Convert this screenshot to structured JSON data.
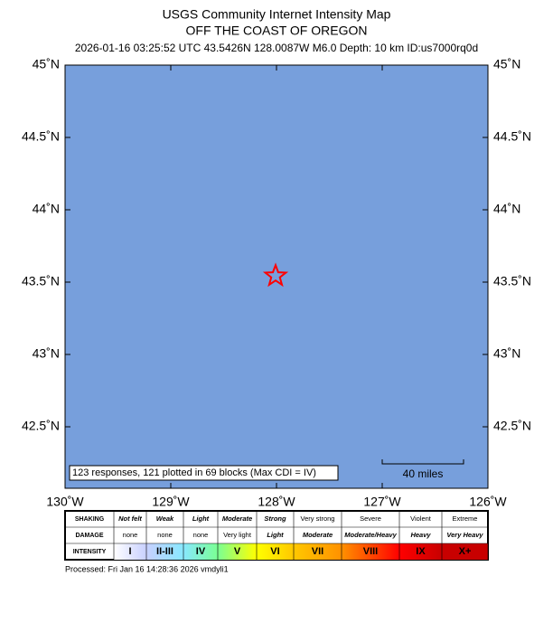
{
  "header": {
    "title": "USGS Community Internet Intensity Map",
    "subtitle": "OFF THE COAST OF OREGON",
    "info": "2026-01-16 03:25:52 UTC 43.5426N 128.0087W M6.0 Depth: 10 km ID:us7000rq0d"
  },
  "map": {
    "xlim": [
      -130,
      -126
    ],
    "ylim": [
      42.075,
      45
    ],
    "xticks": [
      {
        "value": -130,
        "label": "130˚W"
      },
      {
        "value": -129,
        "label": "129˚W"
      },
      {
        "value": -128,
        "label": "128˚W"
      },
      {
        "value": -127,
        "label": "127˚W"
      },
      {
        "value": -126,
        "label": "126˚W"
      }
    ],
    "yticks": [
      {
        "value": 42.5,
        "label": "42.5˚N"
      },
      {
        "value": 43,
        "label": "43˚N"
      },
      {
        "value": 43.5,
        "label": "43.5˚N"
      },
      {
        "value": 44,
        "label": "44˚N"
      },
      {
        "value": 44.5,
        "label": "44.5˚N"
      },
      {
        "value": 45,
        "label": "45˚N"
      }
    ],
    "water_color": "#779fdc",
    "epicenter": {
      "lon": -128.0087,
      "lat": 43.5426,
      "color": "#ff0000"
    },
    "note": "123 responses, 121 plotted in 69 blocks (Max CDI = IV)",
    "scale_label": "40 miles"
  },
  "legend": {
    "row_labels": [
      "SHAKING",
      "DAMAGE",
      "INTENSITY"
    ],
    "shaking": [
      "Not felt",
      "Weak",
      "Light",
      "Moderate",
      "Strong",
      "Very strong",
      "Severe",
      "Violent",
      "Extreme"
    ],
    "damage": [
      "none",
      "none",
      "none",
      "Very light",
      "Light",
      "Moderate",
      "Moderate/Heavy",
      "Heavy",
      "Very Heavy"
    ],
    "intensity": [
      "I",
      "II-III",
      "IV",
      "V",
      "VI",
      "VII",
      "VIII",
      "IX",
      "X+"
    ],
    "colors": [
      "#ffffff",
      "#c8d0ff",
      "#88e8ff",
      "#7aff93",
      "#ffff00",
      "#ffc800",
      "#ff9100",
      "#ff0000",
      "#c80000"
    ]
  },
  "footer": "Processed: Fri Jan 16 14:28:36 2026 vmdyli1"
}
